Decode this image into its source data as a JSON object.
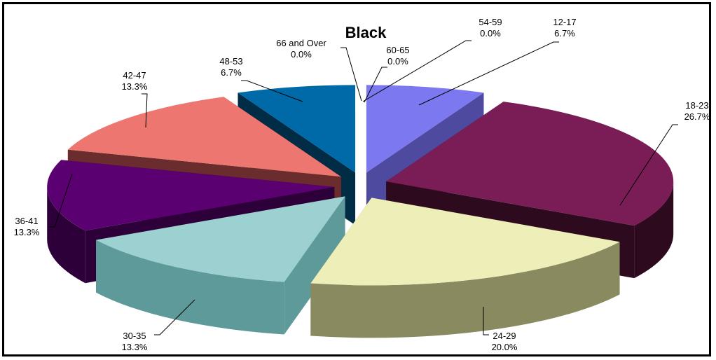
{
  "chart_data": {
    "type": "pie",
    "title": "Black",
    "style": "3d-exploded",
    "categories": [
      "12-17",
      "18-23",
      "24-29",
      "30-35",
      "36-41",
      "42-47",
      "48-53",
      "66 and Over",
      "60-65",
      "54-59"
    ],
    "values": [
      6.7,
      26.7,
      20.0,
      13.3,
      13.3,
      13.3,
      6.7,
      0.0,
      0.0,
      0.0
    ],
    "value_labels": [
      "6.7%",
      "26.7%",
      "20.0%",
      "13.3%",
      "13.3%",
      "13.3%",
      "6.7%",
      "0.0%",
      "0.0%",
      "0.0%"
    ],
    "colors": [
      "#7b78f0",
      "#7a1c55",
      "#eeeeb8",
      "#9dd0d0",
      "#5a0070",
      "#ee7670",
      "#006aa8",
      "#b8b8b8",
      "#b8b8b8",
      "#b8b8b8"
    ],
    "side_colors": [
      "#4d4aa0",
      "#2e0a1e",
      "#8a8a60",
      "#5e9a9a",
      "#2e003a",
      "#6a2c2c",
      "#002c46",
      "#888888",
      "#888888",
      "#888888"
    ],
    "legend": "none"
  }
}
